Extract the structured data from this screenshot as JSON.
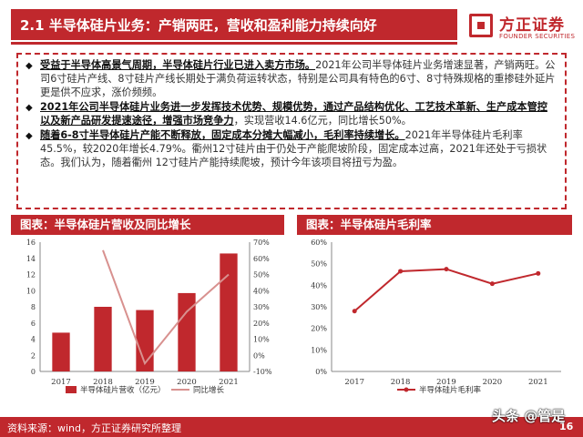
{
  "header": {
    "title": "2.1 半导体硅片业务：产销两旺，营收和盈利能力持续向好",
    "logo_cn": "方正证券",
    "logo_en": "FOUNDER SECURITIES",
    "brand_color": "#c0282d"
  },
  "bullets": [
    {
      "bold": "受益于半导体高景气周期，半导体硅片行业已进入卖方市场。",
      "text": "2021年公司半导体硅片业务增速显著，产销两旺。公司6寸硅片产线、8寸硅片产线长期处于满负荷运转状态，特别是公司具有特色的6寸、8寸特殊规格的重掺硅外延片更是供不应求，涨价频频。"
    },
    {
      "bold": "2021年公司半导体硅片业务进一步发挥技术优势、规模优势，通过产品结构优化、工艺技术革新、生产成本管控以及新产品研发提速途径，增强市场竞争力",
      "text": "，实现营收14.6亿元，同比增长50%。"
    },
    {
      "bold": "随着6-8寸半导体硅片产能不断释放，固定成本分摊大幅减小，毛利率持续增长。",
      "text": "2021年半导体硅片毛利率45.5%，较2020年增长4.79%。衢州12寸硅片由于仍处于产能爬坡阶段，固定成本过高，2021年还处于亏损状态。我们认为，随着衢州 12寸硅片产能持续爬坡，预计今年该项目将扭亏为盈。"
    }
  ],
  "charts": {
    "left_title": "图表：半导体硅片营收及同比增长",
    "right_title": "图表：半导体硅片毛利率"
  },
  "chart_data": [
    {
      "type": "bar",
      "title": "图表：半导体硅片营收及同比增长",
      "categories": [
        "2017",
        "2018",
        "2019",
        "2020",
        "2021"
      ],
      "series": [
        {
          "name": "半导体硅片营收（亿元）",
          "type": "bar",
          "axis": "left",
          "values": [
            4.8,
            8.0,
            7.6,
            9.7,
            14.6
          ],
          "color": "#c0282d"
        },
        {
          "name": "同比增长",
          "type": "line",
          "axis": "right",
          "values": [
            null,
            0.65,
            -0.05,
            0.27,
            0.5
          ],
          "color": "#d8918f"
        }
      ],
      "ylim_left": [
        0,
        16
      ],
      "yticks_left": [
        "0",
        "2",
        "4",
        "6",
        "8",
        "10",
        "12",
        "14",
        "16"
      ],
      "ylim_right": [
        -0.1,
        0.7
      ],
      "yticks_right": [
        "-10%",
        "0%",
        "10%",
        "20%",
        "30%",
        "40%",
        "50%",
        "60%",
        "70%"
      ],
      "legend_position": "bottom"
    },
    {
      "type": "line",
      "title": "图表：半导体硅片毛利率",
      "categories": [
        "2017",
        "2018",
        "2019",
        "2020",
        "2021"
      ],
      "series": [
        {
          "name": "半导体硅片毛利率",
          "values": [
            0.28,
            0.465,
            0.475,
            0.407,
            0.455
          ],
          "color": "#c0282d"
        }
      ],
      "ylim": [
        0,
        0.6
      ],
      "yticks": [
        "0%",
        "10%",
        "20%",
        "30%",
        "40%",
        "50%",
        "60%"
      ],
      "legend_position": "bottom"
    }
  ],
  "footer": {
    "source": "资料来源：wind，方正证券研究所整理",
    "page": "16",
    "watermark": "头条 @管是"
  }
}
